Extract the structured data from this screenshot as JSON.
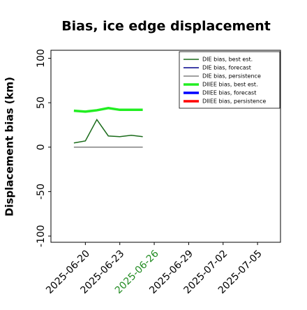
{
  "chart_data": {
    "type": "line",
    "title": "Bias, ice edge displacement",
    "y_label": "Displacement bias (km)",
    "x": [
      "2025-06-19",
      "2025-06-20",
      "2025-06-21",
      "2025-06-22",
      "2025-06-23",
      "2025-06-24",
      "2025-06-25"
    ],
    "series": [
      {
        "name": "DIE bias, best est.",
        "color": "#1a6b1a",
        "width": 1.5,
        "values": [
          4.7,
          7,
          31,
          12.6,
          11.8,
          13.4,
          11.8
        ]
      },
      {
        "name": "DIE bias, forecast",
        "color": "#00008b",
        "width": 1.5,
        "values": [
          null,
          null,
          null,
          null,
          null,
          null,
          null
        ]
      },
      {
        "name": "DIE bias, persistence",
        "color": "#808080",
        "width": 1.5,
        "values": [
          0,
          0,
          0,
          0,
          0,
          0,
          0
        ]
      },
      {
        "name": "DIIEE bias, best est.",
        "color": "#22ee22",
        "width": 3.5,
        "values": [
          41,
          40,
          41.5,
          44,
          42,
          42,
          42
        ]
      },
      {
        "name": "DIIEE bias, forecast",
        "color": "#0000ff",
        "width": 3.5,
        "values": [
          null,
          null,
          null,
          null,
          null,
          null,
          null
        ]
      },
      {
        "name": "DIIEE bias, persistence",
        "color": "#ff0000",
        "width": 3.5,
        "values": [
          null,
          null,
          null,
          null,
          null,
          null,
          null
        ]
      }
    ],
    "xlim": [
      "2025-06-17",
      "2025-07-07"
    ],
    "xticks": [
      "2025-06-20",
      "2025-06-23",
      "2025-06-26",
      "2025-06-29",
      "2025-07-02",
      "2025-07-05"
    ],
    "highlight_xtick_color": "#228b22",
    "highlight_xtick": "2025-06-26",
    "ylim": [
      -107,
      109
    ],
    "yticks": [
      -100,
      -50,
      0,
      50,
      100
    ],
    "legend": "upper right"
  }
}
